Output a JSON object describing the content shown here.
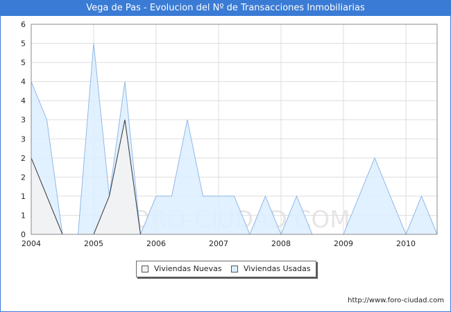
{
  "title": "Vega de Pas - Evolucion del Nº de Transacciones Inmobiliarias",
  "source": "http://www.foro-ciudad.com",
  "watermark": "FORO-CIUDAD.COM",
  "colors": {
    "title_bg": "#3a7bd5",
    "nuevas_fill": "#f2f2f2",
    "nuevas_line": "#333333",
    "usadas_fill": "#ddeeff",
    "usadas_line": "#90b8e8",
    "grid": "#dddddd"
  },
  "chart_data": {
    "type": "area",
    "title": "Vega de Pas - Evolucion del Nº de Transacciones Inmobiliarias",
    "xlabel": "",
    "ylabel": "",
    "x": [
      2004.0,
      2004.25,
      2004.5,
      2004.75,
      2005.0,
      2005.25,
      2005.5,
      2005.75,
      2006.0,
      2006.25,
      2006.5,
      2006.75,
      2007.0,
      2007.25,
      2007.5,
      2007.75,
      2008.0,
      2008.25,
      2008.5,
      2008.75,
      2009.0,
      2009.25,
      2009.5,
      2009.75,
      2010.0,
      2010.25,
      2010.5
    ],
    "x_tick_labels": [
      "2004",
      "2005",
      "2006",
      "2007",
      "2008",
      "2009",
      "2010"
    ],
    "y_tick_labels": [
      "0",
      "1",
      "1",
      "2",
      "2",
      "3",
      "3",
      "4",
      "4",
      "5",
      "5",
      "6"
    ],
    "ylim": [
      0,
      5.5
    ],
    "grid": true,
    "legend_position": "bottom-center",
    "series": [
      {
        "name": "Viviendas Nuevas",
        "values": [
          2,
          1,
          0,
          0,
          0,
          1,
          3,
          0,
          0,
          0,
          0,
          0,
          0,
          0,
          0,
          0,
          0,
          0,
          0,
          0,
          0,
          0,
          0,
          0,
          0,
          0,
          0
        ]
      },
      {
        "name": "Viviendas Usadas",
        "values": [
          4,
          3,
          0,
          0,
          5,
          1,
          4,
          0,
          1,
          1,
          3,
          1,
          1,
          1,
          0,
          1,
          0,
          1,
          0,
          0,
          0,
          1,
          2,
          1,
          0,
          1,
          0
        ]
      }
    ]
  }
}
